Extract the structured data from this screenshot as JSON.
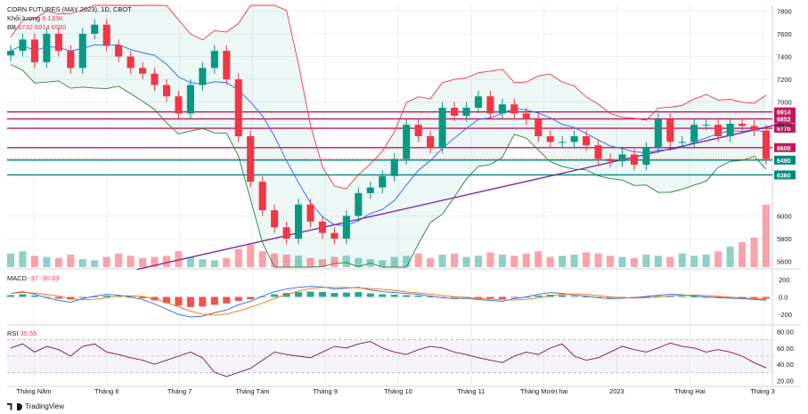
{
  "header": {
    "title": "CORN FUTURES (MAY 2023), 1D, CBOT",
    "volume_label": "Khối lượng",
    "volume_value": "9.133K",
    "bb_label": "BB",
    "bb_values": "6732  6914  6550",
    "macd_label": "MACD",
    "macd_values": "-37  -30  03",
    "rsi_label": "RSI",
    "rsi_value": "35.55"
  },
  "footer": {
    "brand": "TradingView"
  },
  "colors": {
    "up": "#089981",
    "down": "#f23645",
    "bb_band": "#f23645",
    "bb_mid": "#2962ff",
    "bb_lower": "#2e7d32",
    "trendline": "#7b1fa2",
    "resistance": "#c2185b",
    "support": "#00897b",
    "rsi": "#7e1450",
    "macd_hist_pos": "#26a69a",
    "macd_hist_neg": "#ef5350"
  },
  "chart_data": {
    "type": "candlestick",
    "x_tick_labels": [
      "Tháng Năm",
      "Tháng 6",
      "Tháng 7",
      "Tháng Tám",
      "Tháng 9",
      "Tháng 10",
      "Tháng 11",
      "Tháng Mười hai",
      "2023",
      "Tháng Hai",
      "Tháng 3"
    ],
    "price_axis": {
      "ticks": [
        "7800",
        "7600",
        "7400",
        "7200",
        "7000",
        "6800",
        "6600",
        "6490",
        "6360",
        "6000",
        "5800",
        "5600"
      ],
      "ylim": [
        5550,
        7850
      ]
    },
    "levels": [
      {
        "value": 6914,
        "label": "6914",
        "kind": "resistance"
      },
      {
        "value": 6852,
        "label": "6852",
        "kind": "resistance"
      },
      {
        "value": 6770,
        "label": "6770",
        "kind": "resistance"
      },
      {
        "value": 6600,
        "label": "6600",
        "kind": "resistance"
      },
      {
        "value": 6490,
        "label": "6490",
        "kind": "support"
      },
      {
        "value": 6360,
        "label": "6360",
        "kind": "support"
      }
    ],
    "trendline": {
      "from": {
        "x_index": 0.17,
        "value": 5530
      },
      "to": {
        "x_index": 0.99,
        "value": 6780
      }
    },
    "macd_axis": {
      "ticks": [
        "200",
        "0.0",
        "-200"
      ],
      "ylim": [
        -290,
        290
      ]
    },
    "rsi_axis": {
      "ticks": [
        "80.00",
        "60.00",
        "40.00",
        "20.00"
      ],
      "ylim": [
        15,
        85
      ],
      "band": [
        30,
        70
      ]
    },
    "price_path": [
      7450,
      7550,
      7350,
      7600,
      7450,
      7300,
      7600,
      7680,
      7500,
      7400,
      7300,
      7250,
      7150,
      7050,
      6900,
      7150,
      7300,
      7450,
      7200,
      6700,
      6300,
      6050,
      5900,
      5800,
      6100,
      5950,
      5850,
      5800,
      6000,
      6200,
      6250,
      6350,
      6500,
      6800,
      6700,
      6600,
      6950,
      6880,
      6950,
      7050,
      6900,
      6980,
      6900,
      6850,
      6700,
      6650,
      6650,
      6700,
      6620,
      6500,
      6480,
      6540,
      6450,
      6600,
      6850,
      6650,
      6650,
      6800,
      6800,
      6700,
      6810,
      6790,
      6750,
      6500
    ],
    "volume_path": [
      12,
      14,
      10,
      9,
      8,
      11,
      7,
      6,
      9,
      12,
      10,
      8,
      9,
      10,
      14,
      9,
      7,
      6,
      8,
      16,
      20,
      14,
      12,
      11,
      10,
      8,
      7,
      9,
      10,
      8,
      7,
      6,
      9,
      10,
      12,
      8,
      11,
      12,
      9,
      10,
      13,
      11,
      10,
      12,
      14,
      9,
      10,
      11,
      13,
      12,
      10,
      9,
      8,
      11,
      10,
      9,
      12,
      10,
      11,
      14,
      18,
      22,
      26,
      55
    ],
    "macd_path": [
      40,
      60,
      30,
      -10,
      -40,
      -60,
      -20,
      10,
      30,
      20,
      0,
      -30,
      -80,
      -140,
      -200,
      -230,
      -220,
      -180,
      -150,
      -90,
      -50,
      10,
      60,
      90,
      110,
      120,
      115,
      90,
      100,
      110,
      80,
      60,
      50,
      40,
      30,
      10,
      -10,
      -20,
      -15,
      -30,
      -40,
      -50,
      -20,
      0,
      30,
      50,
      40,
      20,
      10,
      -10,
      -20,
      -15,
      -10,
      5,
      20,
      30,
      25,
      10,
      0,
      -10,
      -15,
      -20,
      -30,
      -37
    ],
    "rsi_path": [
      60,
      65,
      55,
      62,
      58,
      50,
      62,
      65,
      55,
      52,
      48,
      45,
      40,
      45,
      50,
      55,
      48,
      30,
      25,
      30,
      35,
      45,
      55,
      52,
      50,
      48,
      55,
      62,
      60,
      65,
      68,
      60,
      55,
      52,
      58,
      62,
      60,
      55,
      52,
      48,
      45,
      42,
      50,
      55,
      52,
      60,
      65,
      50,
      45,
      48,
      55,
      62,
      58,
      55,
      60,
      66,
      62,
      60,
      55,
      58,
      55,
      50,
      42,
      35.55
    ]
  }
}
